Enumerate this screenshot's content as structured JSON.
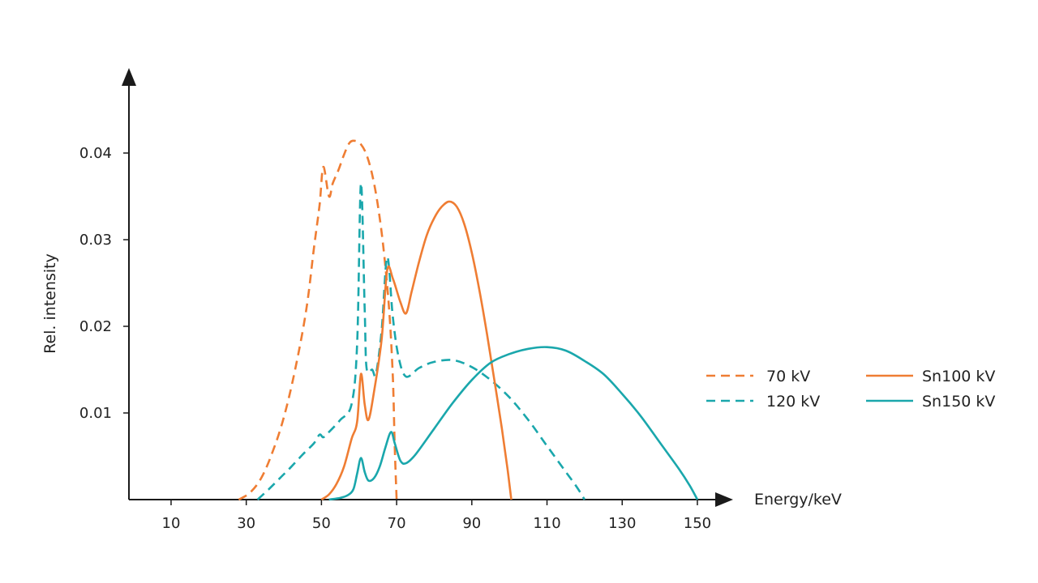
{
  "chart_data": {
    "type": "line",
    "title": "",
    "xlabel": "Energy/keV",
    "ylabel": "Rel. intensity",
    "xlim": [
      0,
      150
    ],
    "ylim": [
      0,
      0.042
    ],
    "x_ticks": [
      10,
      30,
      50,
      70,
      90,
      110,
      130,
      150
    ],
    "x_tick_labels": [
      "10",
      "30",
      "50",
      "70",
      "90",
      "110",
      "130",
      "150"
    ],
    "y_ticks": [
      0.01,
      0.02,
      0.03,
      0.04
    ],
    "y_tick_labels": [
      "0.01",
      "0.02",
      "0.03",
      "0.04"
    ],
    "grid": false,
    "legend_position": "right",
    "colors": {
      "orange": "#ef7d33",
      "teal": "#1aa7ac",
      "axis": "#1a1a1a"
    },
    "series": [
      {
        "name": "70 kV",
        "color": "#ef7d33",
        "dash": true,
        "points": [
          [
            28,
            0
          ],
          [
            31,
            0.0008
          ],
          [
            34,
            0.0025
          ],
          [
            37,
            0.0055
          ],
          [
            40,
            0.0095
          ],
          [
            43,
            0.015
          ],
          [
            46,
            0.022
          ],
          [
            48,
            0.029
          ],
          [
            49.5,
            0.034
          ],
          [
            50.5,
            0.0384
          ],
          [
            52,
            0.035
          ],
          [
            53,
            0.0365
          ],
          [
            54.5,
            0.038
          ],
          [
            56,
            0.0398
          ],
          [
            57.5,
            0.0412
          ],
          [
            59,
            0.0414
          ],
          [
            60.5,
            0.041
          ],
          [
            62,
            0.0398
          ],
          [
            63.5,
            0.0375
          ],
          [
            65,
            0.034
          ],
          [
            66.5,
            0.029
          ],
          [
            68,
            0.022
          ],
          [
            69,
            0.014
          ],
          [
            69.5,
            0.006
          ],
          [
            70,
            0
          ]
        ]
      },
      {
        "name": "120 kV",
        "color": "#1aa7ac",
        "dash": true,
        "points": [
          [
            33,
            0
          ],
          [
            36,
            0.0012
          ],
          [
            39,
            0.0025
          ],
          [
            42,
            0.0038
          ],
          [
            45,
            0.0052
          ],
          [
            48,
            0.0065
          ],
          [
            49.5,
            0.0075
          ],
          [
            50.5,
            0.0072
          ],
          [
            52,
            0.0078
          ],
          [
            55,
            0.0092
          ],
          [
            58,
            0.011
          ],
          [
            59.5,
            0.018
          ],
          [
            60.5,
            0.0365
          ],
          [
            61.5,
            0.022
          ],
          [
            62,
            0.0152
          ],
          [
            63.5,
            0.015
          ],
          [
            64.5,
            0.0145
          ],
          [
            66,
            0.0195
          ],
          [
            67.5,
            0.028
          ],
          [
            69,
            0.021
          ],
          [
            70.5,
            0.0165
          ],
          [
            72.5,
            0.0142
          ],
          [
            76,
            0.0152
          ],
          [
            80,
            0.0159
          ],
          [
            85,
            0.0161
          ],
          [
            90,
            0.0153
          ],
          [
            95,
            0.0138
          ],
          [
            100,
            0.0118
          ],
          [
            105,
            0.0092
          ],
          [
            110,
            0.0062
          ],
          [
            115,
            0.0032
          ],
          [
            118,
            0.0014
          ],
          [
            120,
            0
          ]
        ]
      },
      {
        "name": "Sn100 kV",
        "color": "#ef7d33",
        "dash": false,
        "points": [
          [
            50,
            0
          ],
          [
            52,
            0.0006
          ],
          [
            54,
            0.0018
          ],
          [
            56,
            0.0038
          ],
          [
            58,
            0.007
          ],
          [
            59.5,
            0.009
          ],
          [
            60.5,
            0.0145
          ],
          [
            61.5,
            0.011
          ],
          [
            62.5,
            0.0092
          ],
          [
            64,
            0.0125
          ],
          [
            66,
            0.0185
          ],
          [
            67.5,
            0.0265
          ],
          [
            69,
            0.0255
          ],
          [
            71,
            0.0228
          ],
          [
            72.5,
            0.0215
          ],
          [
            74,
            0.024
          ],
          [
            76,
            0.0275
          ],
          [
            78,
            0.0305
          ],
          [
            80,
            0.0325
          ],
          [
            82,
            0.0338
          ],
          [
            84,
            0.0344
          ],
          [
            86,
            0.0338
          ],
          [
            88,
            0.0318
          ],
          [
            90,
            0.0285
          ],
          [
            92,
            0.0242
          ],
          [
            94,
            0.0192
          ],
          [
            96,
            0.0138
          ],
          [
            98,
            0.0082
          ],
          [
            99.5,
            0.0035
          ],
          [
            100.5,
            0
          ]
        ]
      },
      {
        "name": "Sn150 kV",
        "color": "#1aa7ac",
        "dash": false,
        "points": [
          [
            52,
            0
          ],
          [
            55,
            0.0002
          ],
          [
            57,
            0.0005
          ],
          [
            58.5,
            0.0012
          ],
          [
            59.5,
            0.003
          ],
          [
            60.5,
            0.0048
          ],
          [
            61.5,
            0.0032
          ],
          [
            62.5,
            0.0022
          ],
          [
            64,
            0.0025
          ],
          [
            65.5,
            0.0038
          ],
          [
            67,
            0.006
          ],
          [
            68.5,
            0.0078
          ],
          [
            69.5,
            0.0065
          ],
          [
            71,
            0.0045
          ],
          [
            72.5,
            0.0042
          ],
          [
            75,
            0.0052
          ],
          [
            80,
            0.0082
          ],
          [
            85,
            0.0112
          ],
          [
            90,
            0.0138
          ],
          [
            95,
            0.0158
          ],
          [
            100,
            0.0168
          ],
          [
            105,
            0.0174
          ],
          [
            110,
            0.0176
          ],
          [
            115,
            0.0172
          ],
          [
            120,
            0.016
          ],
          [
            125,
            0.0145
          ],
          [
            130,
            0.0122
          ],
          [
            135,
            0.0096
          ],
          [
            140,
            0.0066
          ],
          [
            145,
            0.0036
          ],
          [
            148,
            0.0016
          ],
          [
            150,
            0
          ]
        ]
      }
    ]
  }
}
